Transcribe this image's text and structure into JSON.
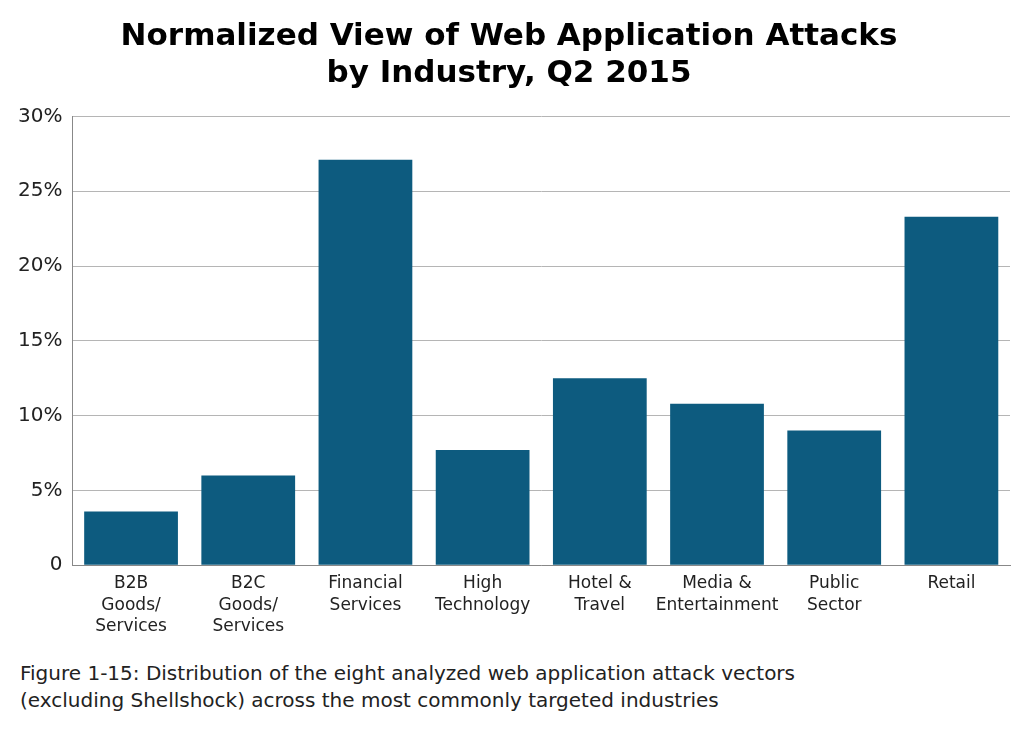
{
  "chart_data": {
    "type": "bar",
    "title": [
      "Normalized View of Web Application Attacks",
      "by Industry, Q2 2015"
    ],
    "caption": [
      "Figure 1-15: Distribution of the eight analyzed web application attack vectors",
      "(excluding Shellshock) across the most commonly targeted industries"
    ],
    "categories": [
      [
        "B2B",
        "Goods/",
        "Services"
      ],
      [
        "B2C",
        "Goods/",
        "Services"
      ],
      [
        "Financial",
        "Services"
      ],
      [
        "High",
        "Technology"
      ],
      [
        "Hotel &",
        "Travel"
      ],
      [
        "Media &",
        "Entertainment"
      ],
      [
        "Public",
        "Sector"
      ],
      [
        "Retail"
      ]
    ],
    "values": [
      3.6,
      6.0,
      27.1,
      7.7,
      12.5,
      10.8,
      9.0,
      23.3
    ],
    "color": "#0d5b7f",
    "ylim": [
      0,
      30
    ],
    "yticks": [
      0,
      {
        "value": 5,
        "label": "5%"
      },
      {
        "value": 10,
        "label": "10%"
      },
      {
        "value": 15,
        "label": "15%"
      },
      {
        "value": 20,
        "label": "20%"
      },
      {
        "value": 25,
        "label": "25%"
      },
      {
        "value": 30,
        "label": "30%"
      }
    ],
    "grid": true
  }
}
